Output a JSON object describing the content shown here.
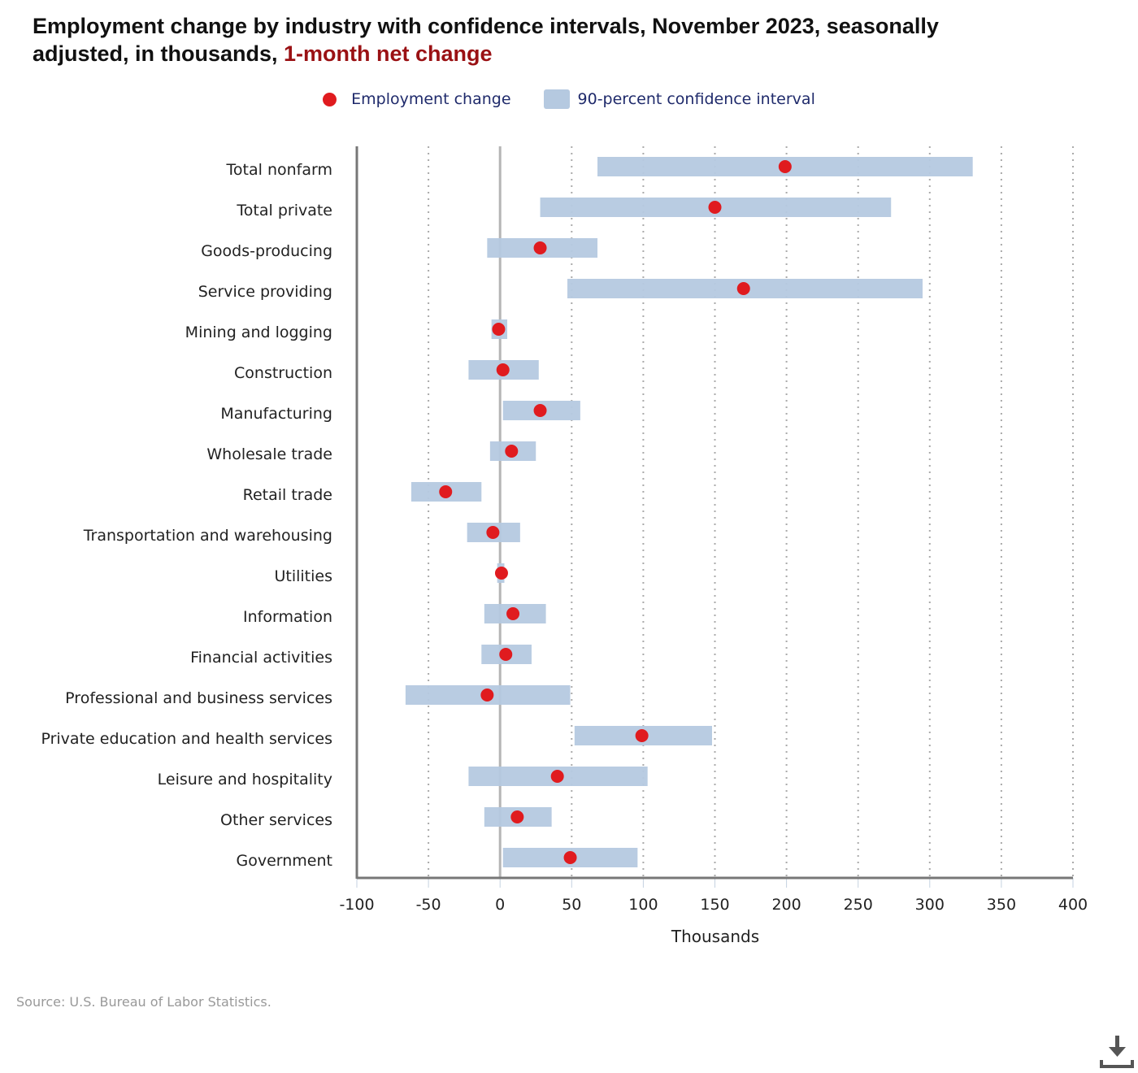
{
  "title": {
    "main": "Employment change by industry with confidence intervals, November 2023, seasonally adjusted, in thousands, ",
    "accent": "1-month net change"
  },
  "legend": {
    "point_label": "Employment change",
    "interval_label": "90-percent confidence interval"
  },
  "source": "Source: U.S. Bureau of Labor Statistics.",
  "icons": {
    "download": "download-icon"
  },
  "colors": {
    "point": "#e01b1f",
    "interval": "#b5c9e0",
    "title_accent": "#9a1114",
    "legend_text": "#1f2a6b"
  },
  "chart_data": {
    "type": "scatter",
    "orientation": "horizontal",
    "title": "Employment change by industry with confidence intervals, November 2023, seasonally adjusted, in thousands, 1-month net change",
    "xlabel": "Thousands",
    "ylabel": "",
    "xlim": [
      -100,
      400
    ],
    "xticks": [
      -100,
      -50,
      0,
      50,
      100,
      150,
      200,
      250,
      300,
      350,
      400
    ],
    "grid": "vertical-dotted",
    "legend_position": "top-center",
    "categories": [
      "Total nonfarm",
      "Total private",
      "Goods-producing",
      "Service providing",
      "Mining and logging",
      "Construction",
      "Manufacturing",
      "Wholesale trade",
      "Retail trade",
      "Transportation and warehousing",
      "Utilities",
      "Information",
      "Financial activities",
      "Professional and business services",
      "Private education and health services",
      "Leisure and hospitality",
      "Other services",
      "Government"
    ],
    "series": [
      {
        "name": "Employment change",
        "values": [
          199,
          150,
          28,
          170,
          -1,
          2,
          28,
          8,
          -38,
          -5,
          1,
          9,
          4,
          -9,
          99,
          40,
          12,
          49
        ]
      },
      {
        "name": "90-percent confidence interval low",
        "values": [
          68,
          28,
          -9,
          47,
          -6,
          -22,
          2,
          -7,
          -62,
          -23,
          -2,
          -11,
          -13,
          -66,
          52,
          -22,
          -11,
          2
        ]
      },
      {
        "name": "90-percent confidence interval high",
        "values": [
          330,
          273,
          68,
          295,
          5,
          27,
          56,
          25,
          -13,
          14,
          3,
          32,
          22,
          49,
          148,
          103,
          36,
          96
        ]
      }
    ]
  }
}
